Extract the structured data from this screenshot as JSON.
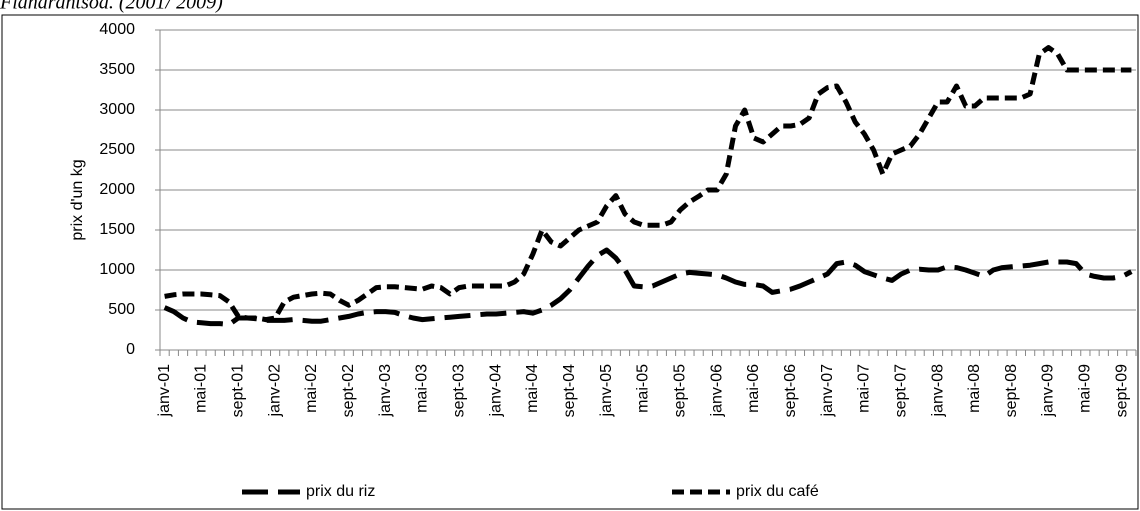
{
  "chart_data": {
    "type": "line",
    "title": "Fianarantsoa. (2001/ 2009)",
    "y_label": "prix d'un kg",
    "categories": [
      "janv-01",
      null,
      null,
      null,
      "mai-01",
      null,
      null,
      null,
      "sept-01",
      null,
      null,
      null,
      "janv-02",
      null,
      null,
      null,
      "mai-02",
      null,
      null,
      null,
      "sept-02",
      null,
      null,
      null,
      "janv-03",
      null,
      null,
      null,
      "mai-03",
      null,
      null,
      null,
      "sept-03",
      null,
      null,
      null,
      "janv-04",
      null,
      null,
      null,
      "mai-04",
      null,
      null,
      null,
      "sept-04",
      null,
      null,
      null,
      "janv-05",
      null,
      null,
      null,
      "mai-05",
      null,
      null,
      null,
      "sept-05",
      null,
      null,
      null,
      "janv-06",
      null,
      null,
      null,
      "mai-06",
      null,
      null,
      null,
      "sept-06",
      null,
      null,
      null,
      "janv-07",
      null,
      null,
      null,
      "mai-07",
      null,
      null,
      null,
      "sept-07",
      null,
      null,
      null,
      "janv-08",
      null,
      null,
      null,
      "mai-08",
      null,
      null,
      null,
      "sept-08",
      null,
      null,
      null,
      "janv-09",
      null,
      null,
      null,
      "mai-09",
      null,
      null,
      null,
      "sept-09",
      null
    ],
    "series": [
      {
        "name": "prix du riz",
        "color": "#000000",
        "values": [
          530,
          480,
          400,
          350,
          340,
          330,
          330,
          320,
          400,
          400,
          390,
          370,
          370,
          370,
          380,
          370,
          360,
          360,
          380,
          400,
          420,
          450,
          470,
          480,
          480,
          470,
          430,
          400,
          380,
          390,
          400,
          410,
          420,
          430,
          440,
          450,
          450,
          460,
          470,
          480,
          460,
          500,
          560,
          640,
          750,
          900,
          1050,
          1180,
          1250,
          1150,
          1000,
          800,
          790,
          800,
          850,
          900,
          950,
          970,
          960,
          950,
          940,
          900,
          850,
          820,
          820,
          800,
          720,
          740,
          760,
          800,
          850,
          900,
          950,
          1080,
          1100,
          1060,
          980,
          940,
          900,
          870,
          950,
          1000,
          1010,
          1000,
          1000,
          1040,
          1030,
          1000,
          960,
          920,
          1000,
          1030,
          1040,
          1050,
          1060,
          1080,
          1100,
          1100,
          1100,
          1080,
          950,
          920,
          900,
          900,
          920,
          980
        ]
      },
      {
        "name": "prix du café",
        "color": "#000000",
        "values": [
          670,
          690,
          700,
          700,
          700,
          690,
          680,
          600,
          420,
          400,
          400,
          380,
          400,
          600,
          660,
          680,
          700,
          710,
          700,
          620,
          560,
          620,
          700,
          780,
          790,
          790,
          780,
          770,
          760,
          800,
          780,
          700,
          780,
          800,
          800,
          800,
          800,
          800,
          850,
          950,
          1200,
          1500,
          1350,
          1300,
          1400,
          1500,
          1550,
          1600,
          1800,
          1930,
          1700,
          1600,
          1560,
          1560,
          1560,
          1600,
          1750,
          1850,
          1920,
          2000,
          2000,
          2200,
          2800,
          3000,
          2650,
          2600,
          2700,
          2800,
          2800,
          2820,
          2900,
          3200,
          3280,
          3300,
          3100,
          2850,
          2700,
          2500,
          2200,
          2450,
          2500,
          2550,
          2700,
          2900,
          3100,
          3100,
          3300,
          3050,
          3050,
          3150,
          3150,
          3150,
          3150,
          3150,
          3200,
          3700,
          3780,
          3700,
          3500,
          3500,
          3500,
          3500,
          3500,
          3500,
          3500,
          3500
        ]
      }
    ],
    "ylim": [
      0,
      4000
    ],
    "yticks": [
      0,
      500,
      1000,
      1500,
      2000,
      2500,
      3000,
      3500,
      4000
    ],
    "grid": true,
    "legend": "bottom"
  }
}
